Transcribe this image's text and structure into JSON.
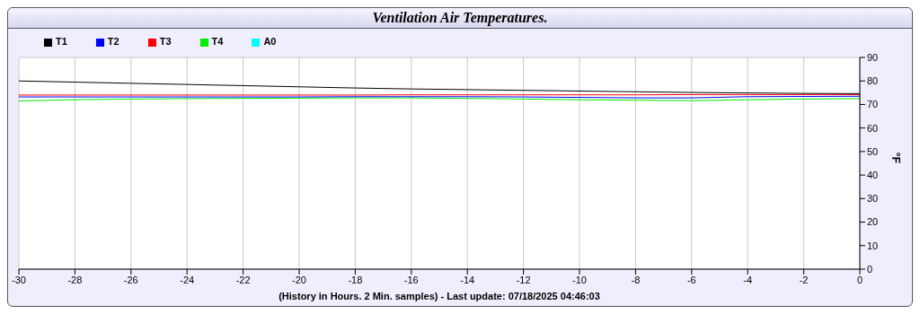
{
  "chart_data": {
    "type": "line",
    "title": "Ventilation Air Temperatures.",
    "xlabel": "(History in Hours. 2 Min. samples) - Last update: 07/18/2025 04:46:03",
    "ylabel": "°F",
    "x": [
      -30,
      -28,
      -26,
      -24,
      -22,
      -20,
      -18,
      -16,
      -14,
      -12,
      -10,
      -8,
      -6,
      -4,
      -2,
      0
    ],
    "series": [
      {
        "name": "T1",
        "color": "#000000",
        "values": [
          80,
          79.5,
          79,
          78.5,
          78,
          77.5,
          77,
          76.6,
          76.3,
          76,
          75.7,
          75.4,
          75.1,
          74.9,
          74.7,
          74.6
        ]
      },
      {
        "name": "T2",
        "color": "#0000ff",
        "values": [
          73.2,
          73.2,
          73.2,
          73.2,
          73.2,
          73.2,
          73.3,
          73.3,
          73.3,
          73.2,
          73,
          72.8,
          72.8,
          73.3,
          73.4,
          73.5
        ]
      },
      {
        "name": "T3",
        "color": "#ff0000",
        "values": [
          74,
          74,
          74,
          74,
          74,
          74,
          74,
          74.1,
          74.1,
          74.1,
          74.1,
          74.1,
          74.2,
          74.2,
          74.2,
          74.2
        ]
      },
      {
        "name": "T4",
        "color": "#00ee00",
        "values": [
          71.5,
          72,
          72.3,
          72.5,
          72.6,
          72.7,
          72.8,
          72.8,
          72.6,
          72.3,
          72,
          71.8,
          71.6,
          72,
          72.3,
          72.5
        ]
      },
      {
        "name": "A0",
        "color": "#00ffff",
        "values": [
          null,
          null,
          null,
          null,
          null,
          null,
          null,
          null,
          null,
          null,
          null,
          null,
          null,
          null,
          null,
          null
        ]
      }
    ],
    "xlim": [
      -30,
      0
    ],
    "xticks": [
      -30,
      -28,
      -26,
      -24,
      -22,
      -20,
      -18,
      -16,
      -14,
      -12,
      -10,
      -8,
      -6,
      -4,
      -2,
      0
    ],
    "ylim": [
      0,
      90
    ],
    "yticks": [
      0,
      10,
      20,
      30,
      40,
      50,
      60,
      70,
      80,
      90
    ],
    "grid": true,
    "legend": "top left",
    "marker": "none",
    "line_style": "solid"
  }
}
